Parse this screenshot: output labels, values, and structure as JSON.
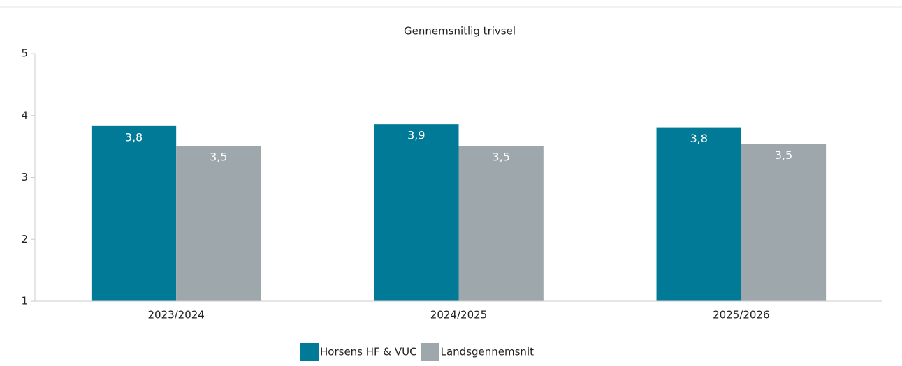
{
  "chart_data": {
    "type": "bar",
    "title": "Gennemsnitlig trivsel",
    "categories": [
      "2023/2024",
      "2024/2025",
      "2025/2026"
    ],
    "series": [
      {
        "name": "Horsens HF & VUC",
        "color": "#007a96",
        "values": [
          3.83,
          3.86,
          3.81
        ],
        "value_labels": [
          "3,8",
          "3,9",
          "3,8"
        ]
      },
      {
        "name": "Landsgennemsnit",
        "color": "#9ea7ab",
        "values": [
          3.51,
          3.51,
          3.54
        ],
        "value_labels": [
          "3,5",
          "3,5",
          "3,5"
        ]
      }
    ],
    "ylim": [
      1,
      5
    ],
    "yticks": [
      1,
      2,
      3,
      4,
      5
    ],
    "legend": "bottom"
  }
}
